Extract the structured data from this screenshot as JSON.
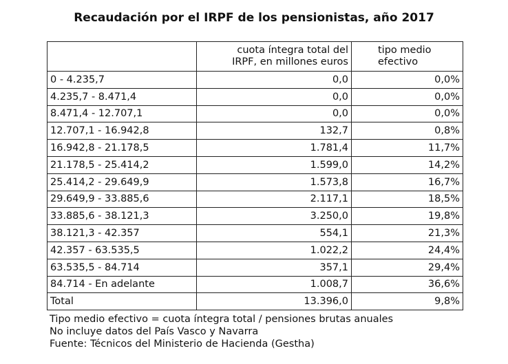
{
  "title": "Recaudación por el IRPF de los pensionistas, año 2017",
  "table": {
    "header": [
      [
        "cuota íntegra total del",
        "IRPF, en millones euros"
      ],
      [
        "tipo medio",
        "efectivo"
      ]
    ],
    "rows": [
      [
        "0 - 4.235,7",
        "0,0",
        "0,0%"
      ],
      [
        "4.235,7 - 8.471,4",
        "0,0",
        "0,0%"
      ],
      [
        "8.471,4 - 12.707,1",
        "0,0",
        "0,0%"
      ],
      [
        "12.707,1 - 16.942,8",
        "132,7",
        "0,8%"
      ],
      [
        "16.942,8 - 21.178,5",
        "1.781,4",
        "11,7%"
      ],
      [
        "21.178,5 - 25.414,2",
        "1.599,0",
        "14,2%"
      ],
      [
        "25.414,2 - 29.649,9",
        "1.573,8",
        "16,7%"
      ],
      [
        "29.649,9 - 33.885,6",
        "2.117,1",
        "18,5%"
      ],
      [
        "33.885,6 - 38.121,3",
        "3.250,0",
        "19,8%"
      ],
      [
        "38.121,3 - 42.357",
        "554,1",
        "21,3%"
      ],
      [
        "42.357 - 63.535,5",
        "1.022,2",
        "24,4%"
      ],
      [
        "63.535,5 - 84.714",
        "357,1",
        "29,4%"
      ],
      [
        "84.714 - En adelante",
        "1.008,7",
        "36,6%"
      ],
      [
        "Total",
        "13.396,0",
        "9,8%"
      ]
    ]
  },
  "notes": [
    "Tipo medio efectivo = cuota íntegra total / pensiones brutas anuales",
    "No incluye datos del País Vasco y Navarra",
    "Fuente: Técnicos del Ministerio de Hacienda (Gestha)"
  ]
}
